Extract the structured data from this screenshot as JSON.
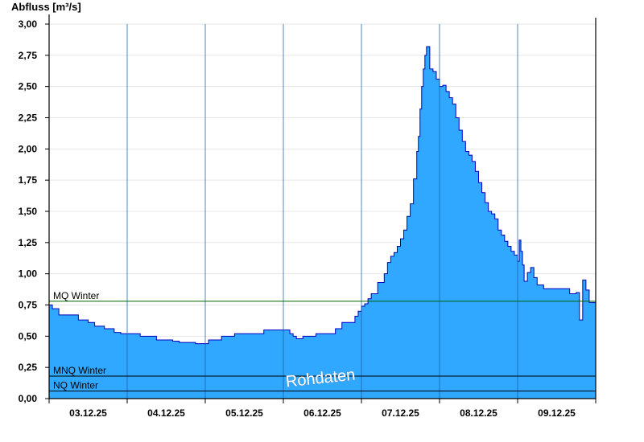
{
  "chart_data": {
    "type": "area",
    "title": "",
    "ylabel": "Abfluss [m³/s]",
    "xlabel": "",
    "ylim": [
      0,
      3.0
    ],
    "y_ticks": [
      "0,00",
      "0,25",
      "0,50",
      "0,75",
      "1,00",
      "1,25",
      "1,50",
      "1,75",
      "2,00",
      "2,25",
      "2,50",
      "2,75",
      "3,00"
    ],
    "x_ticks": [
      "03.12.25",
      "04.12.25",
      "05.12.25",
      "06.12.25",
      "07.12.25",
      "08.12.25",
      "09.12.25"
    ],
    "x_range_hours": [
      0,
      168
    ],
    "grid": "horizontal",
    "annotation": "Rohdaten",
    "colors": {
      "fill": "#30a8ff",
      "line": "#0000c0",
      "mq": "#006400",
      "mnq": "#000000",
      "nq": "#000000",
      "day_separator": "#1a5fa8"
    },
    "reference_lines": [
      {
        "name": "MQ Winter",
        "value": 0.78
      },
      {
        "name": "MNQ Winter",
        "value": 0.18
      },
      {
        "name": "NQ Winter",
        "value": 0.06
      }
    ],
    "series": [
      {
        "x": [
          0,
          1,
          3,
          6,
          9,
          12,
          14,
          17,
          20,
          22,
          24,
          26,
          28,
          33,
          35,
          36,
          38,
          40,
          45,
          48,
          49,
          51,
          53,
          55,
          57,
          59,
          62,
          64,
          66,
          72,
          74,
          75,
          76,
          78,
          82,
          85,
          88,
          90,
          92,
          94,
          95,
          96,
          97,
          98,
          99,
          101,
          103,
          104,
          105,
          106,
          107,
          108,
          109,
          110,
          111,
          112,
          113,
          113.5,
          114,
          114.5,
          115,
          115.5,
          116,
          117,
          118,
          119,
          120,
          121,
          122,
          123,
          124,
          125,
          126,
          127,
          128,
          129,
          130,
          131,
          132,
          133,
          134,
          135,
          136,
          137,
          138,
          139,
          140,
          141,
          142,
          143,
          144,
          144.5,
          145,
          145.5,
          146,
          147,
          148,
          149,
          150,
          152,
          154,
          156,
          158,
          160,
          161,
          162,
          163,
          164,
          165,
          166,
          167,
          168
        ],
        "y": [
          0.75,
          0.72,
          0.67,
          0.67,
          0.63,
          0.61,
          0.58,
          0.56,
          0.53,
          0.52,
          0.52,
          0.52,
          0.5,
          0.47,
          0.47,
          0.47,
          0.46,
          0.45,
          0.44,
          0.44,
          0.47,
          0.47,
          0.5,
          0.5,
          0.52,
          0.52,
          0.52,
          0.52,
          0.55,
          0.55,
          0.52,
          0.5,
          0.48,
          0.5,
          0.52,
          0.52,
          0.56,
          0.61,
          0.61,
          0.66,
          0.7,
          0.74,
          0.76,
          0.8,
          0.84,
          0.93,
          1.0,
          1.09,
          1.14,
          1.17,
          1.22,
          1.28,
          1.35,
          1.46,
          1.56,
          1.76,
          1.98,
          2.1,
          2.32,
          2.5,
          2.64,
          2.75,
          2.82,
          2.64,
          2.62,
          2.56,
          2.5,
          2.51,
          2.46,
          2.41,
          2.36,
          2.25,
          2.15,
          2.06,
          1.98,
          1.95,
          1.9,
          1.82,
          1.73,
          1.65,
          1.57,
          1.5,
          1.48,
          1.44,
          1.35,
          1.31,
          1.26,
          1.22,
          1.18,
          1.15,
          1.1,
          1.27,
          1.18,
          1.07,
          0.94,
          1.01,
          1.05,
          0.97,
          0.91,
          0.88,
          0.88,
          0.88,
          0.88,
          0.84,
          0.84,
          0.85,
          0.63,
          0.95,
          0.87,
          0.77,
          0.77,
          0.77
        ]
      }
    ]
  }
}
